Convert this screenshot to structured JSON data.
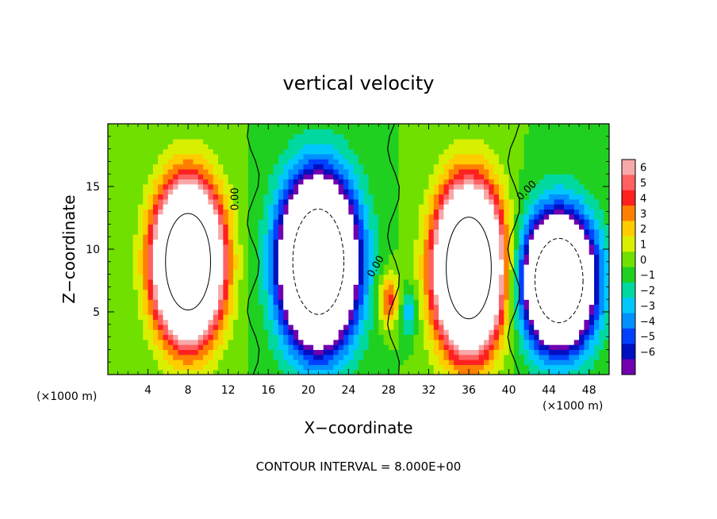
{
  "chart_data": {
    "type": "heatmap",
    "title": "vertical velocity",
    "xlabel": "X−coordinate",
    "ylabel": "Z−coordinate",
    "x_unit_label": "(×1000 m)",
    "x_unit_label_right": "(×1000 m)",
    "xlim": [
      0,
      50
    ],
    "ylim": [
      0,
      20
    ],
    "x_ticks": [
      4,
      8,
      12,
      16,
      20,
      24,
      28,
      32,
      36,
      40,
      44,
      48
    ],
    "y_ticks": [
      5,
      10,
      15
    ],
    "contour_interval_text": "CONTOUR INTERVAL = 8.000E+00",
    "contour_label": "0.00",
    "colorbar": {
      "ticks": [
        "6",
        "5",
        "4",
        "3",
        "2",
        "1",
        "0",
        "−1",
        "−2",
        "−3",
        "−4",
        "−5",
        "−6"
      ],
      "range": [
        -6,
        6
      ],
      "colors": [
        "#f8a8a8",
        "#ff6060",
        "#ff2020",
        "#ff8000",
        "#ffcc00",
        "#d8f000",
        "#70e000",
        "#20d020",
        "#00d8a0",
        "#00c8ff",
        "#0090ff",
        "#0040ff",
        "#0010c0",
        "#7000b0"
      ],
      "saturated_color": "#ffffff"
    },
    "cells": [
      {
        "x": 8,
        "z": 9,
        "w": 3.2,
        "hx": 3.0,
        "hz": 5.5,
        "peak": 22
      },
      {
        "x": 36,
        "z": 8.5,
        "w": 3.2,
        "hx": 3.0,
        "hz": 5.8,
        "peak": 22
      },
      {
        "x": 21,
        "z": 9,
        "w": 3.4,
        "hx": 3.4,
        "hz": 6.0,
        "peak": -22
      },
      {
        "x": 45,
        "z": 7.5,
        "w": 3.2,
        "hx": 3.2,
        "hz": 4.8,
        "peak": -20
      },
      {
        "x": 28,
        "z": 6,
        "w": 1.2,
        "hx": 1.0,
        "hz": 2.0,
        "peak": 4
      },
      {
        "x": 30,
        "z": 5,
        "w": 1.0,
        "hx": 0.8,
        "hz": 2.0,
        "peak": -2.5
      }
    ]
  }
}
